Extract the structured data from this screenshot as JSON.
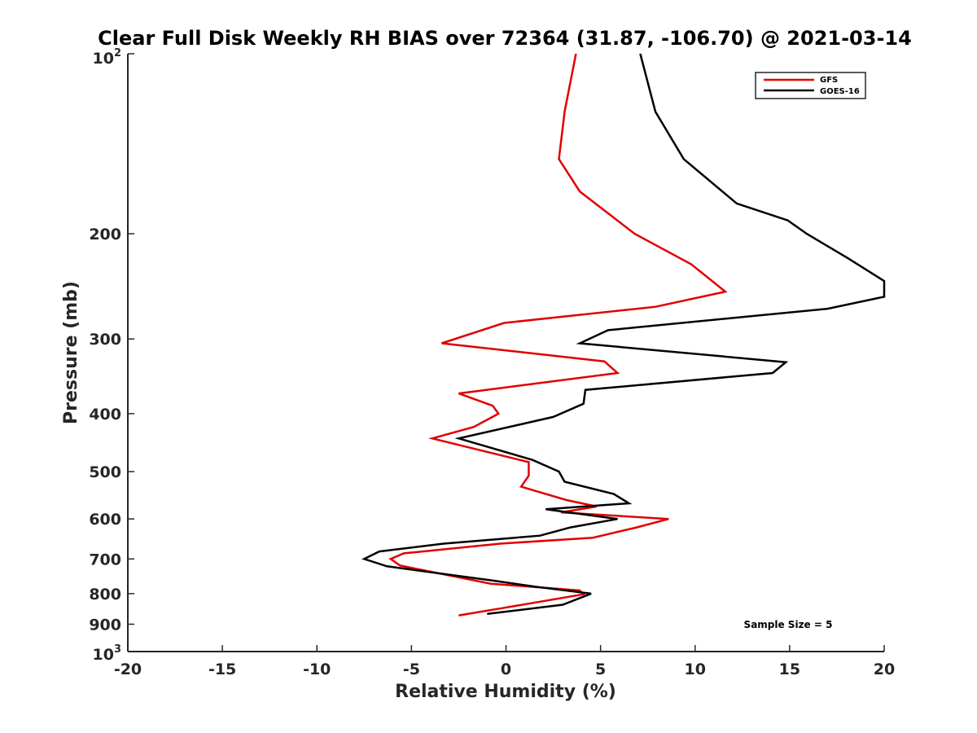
{
  "chart_data": {
    "type": "line",
    "title": "Clear Full Disk Weekly RH BIAS over 72364 (31.87, -106.70) @ 2021-03-14",
    "xlabel": "Relative Humidity (%)",
    "ylabel": "Pressure (mb)",
    "xlim": [
      -20,
      20
    ],
    "ylim": [
      100,
      1000
    ],
    "y_scale": "log",
    "y_reversed": true,
    "grid": false,
    "legend_position": "top-right",
    "x_ticks": [
      "-20",
      "-15",
      "-10",
      "-5",
      "0",
      "5",
      "10",
      "15",
      "20"
    ],
    "y_ticks": [
      {
        "value": 200,
        "label": "200"
      },
      {
        "value": 300,
        "label": "300"
      },
      {
        "value": 400,
        "label": "400"
      },
      {
        "value": 500,
        "label": "500"
      },
      {
        "value": 600,
        "label": "600"
      },
      {
        "value": 700,
        "label": "700"
      },
      {
        "value": 800,
        "label": "800"
      },
      {
        "value": 900,
        "label": "900"
      }
    ],
    "y_tick_top": {
      "base": "10",
      "exp": "2"
    },
    "y_tick_bottom": {
      "base": "10",
      "exp": "3"
    },
    "series": [
      {
        "name": "GFS",
        "color": "#e00000",
        "points": [
          [
            3.7,
            100
          ],
          [
            3.1,
            125
          ],
          [
            2.8,
            150
          ],
          [
            3.9,
            170
          ],
          [
            5.6,
            187
          ],
          [
            6.8,
            200
          ],
          [
            9.8,
            225
          ],
          [
            11.6,
            250
          ],
          [
            7.9,
            265
          ],
          [
            -0.1,
            282
          ],
          [
            -3.4,
            305
          ],
          [
            5.2,
            327
          ],
          [
            5.9,
            342
          ],
          [
            -2.5,
            370
          ],
          [
            -0.7,
            388
          ],
          [
            -0.4,
            400
          ],
          [
            -1.7,
            421
          ],
          [
            -3.9,
            440
          ],
          [
            1.2,
            482
          ],
          [
            1.2,
            508
          ],
          [
            0.8,
            530
          ],
          [
            3.2,
            558
          ],
          [
            4.8,
            572
          ],
          [
            2.9,
            585
          ],
          [
            8.6,
            600
          ],
          [
            6.9,
            620
          ],
          [
            4.6,
            645
          ],
          [
            -0.3,
            660
          ],
          [
            -5.4,
            685
          ],
          [
            -6.1,
            700
          ],
          [
            -5.6,
            718
          ],
          [
            -0.8,
            770
          ],
          [
            3.9,
            790
          ],
          [
            4.1,
            802
          ],
          [
            -0.1,
            845
          ],
          [
            -2.5,
            870
          ]
        ]
      },
      {
        "name": "GOES-16",
        "color": "#000000",
        "points": [
          [
            7.1,
            100
          ],
          [
            7.9,
            125
          ],
          [
            9.4,
            150
          ],
          [
            12.2,
            178
          ],
          [
            14.9,
            190
          ],
          [
            15.9,
            200
          ],
          [
            18.1,
            220
          ],
          [
            20.0,
            240
          ],
          [
            20.0,
            255
          ],
          [
            17.0,
            267
          ],
          [
            5.4,
            290
          ],
          [
            3.9,
            305
          ],
          [
            14.8,
            328
          ],
          [
            14.1,
            342
          ],
          [
            4.2,
            365
          ],
          [
            4.1,
            385
          ],
          [
            2.5,
            405
          ],
          [
            -2.5,
            440
          ],
          [
            1.4,
            478
          ],
          [
            2.8,
            500
          ],
          [
            3.1,
            520
          ],
          [
            5.7,
            545
          ],
          [
            6.5,
            565
          ],
          [
            2.1,
            578
          ],
          [
            5.9,
            600
          ],
          [
            3.4,
            620
          ],
          [
            1.8,
            640
          ],
          [
            -3.3,
            660
          ],
          [
            -6.7,
            680
          ],
          [
            -7.5,
            700
          ],
          [
            -6.3,
            720
          ],
          [
            -0.8,
            760
          ],
          [
            1.7,
            780
          ],
          [
            4.5,
            800
          ],
          [
            3.0,
            835
          ],
          [
            -1.0,
            865
          ]
        ]
      }
    ],
    "annotations": [
      {
        "text": "Sample Size = 5"
      }
    ]
  }
}
